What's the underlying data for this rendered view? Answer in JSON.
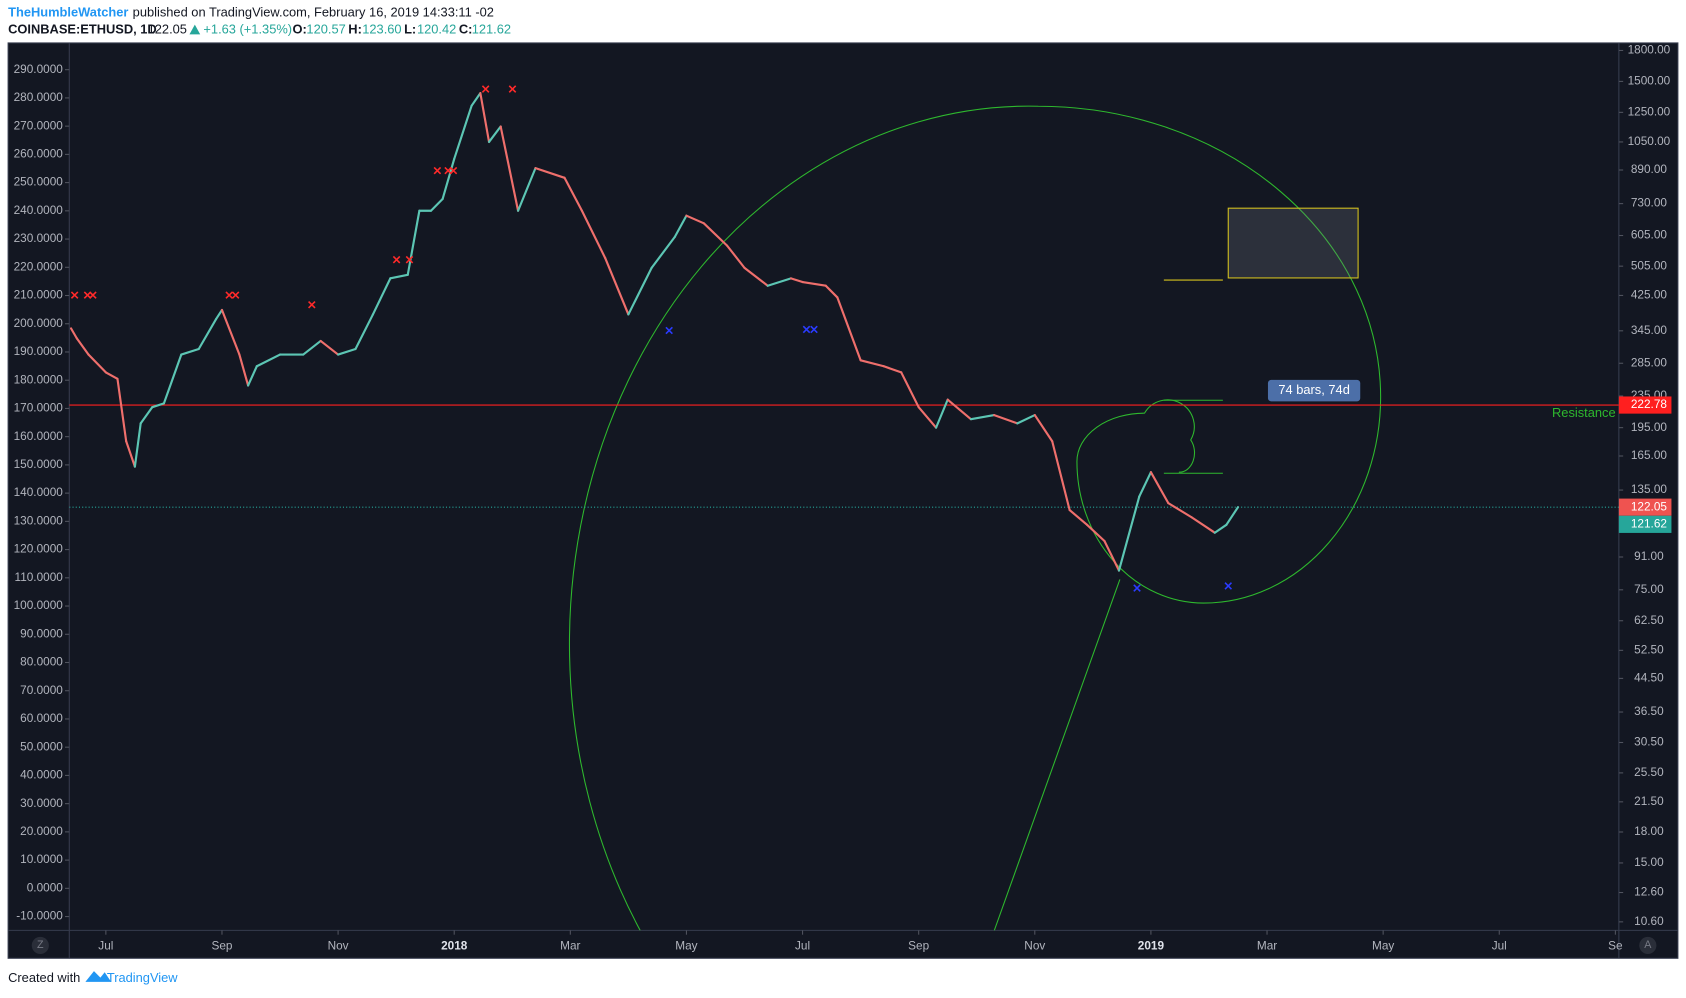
{
  "header": {
    "author": "TheHumbleWatcher",
    "published": "published on TradingView.com, February 16, 2019 14:33:11 -02",
    "symbol": "COINBASE:ETHUSD, 1D",
    "last": "122.05",
    "change": "+1.63 (+1.35%)",
    "o_label": "O:",
    "o": "120.57",
    "h_label": "H:",
    "h": "123.60",
    "l_label": "L:",
    "l": "120.42",
    "c_label": "C:",
    "c": "121.62"
  },
  "footer": {
    "created": "Created with",
    "brand": "TradingView"
  },
  "buttons": {
    "left": "Z",
    "right": "A"
  },
  "chart_data": {
    "type": "line",
    "grid": false,
    "y2log": true,
    "xlim": [
      -0.63,
      26.06
    ],
    "xticks": [
      {
        "value": 0,
        "label": "Jul"
      },
      {
        "value": 2,
        "label": "Sep"
      },
      {
        "value": 4,
        "label": "Nov"
      },
      {
        "value": 6,
        "label": "2018"
      },
      {
        "value": 8,
        "label": "Mar"
      },
      {
        "value": 10,
        "label": "May"
      },
      {
        "value": 12,
        "label": "Jul"
      },
      {
        "value": 14,
        "label": "Sep"
      },
      {
        "value": 16,
        "label": "Nov"
      },
      {
        "value": 18,
        "label": "2019"
      },
      {
        "value": 20,
        "label": "Mar"
      },
      {
        "value": 22,
        "label": "May"
      },
      {
        "value": 24,
        "label": "Jul"
      },
      {
        "value": 26,
        "label": "Se"
      }
    ],
    "ylim": [
      -14.9,
      299.1
    ],
    "yticks": [
      {
        "value": -10,
        "label": "-10.0000"
      },
      {
        "value": 0,
        "label": "0.0000"
      },
      {
        "value": 10,
        "label": "10.0000"
      },
      {
        "value": 20,
        "label": "20.0000"
      },
      {
        "value": 30,
        "label": "30.0000"
      },
      {
        "value": 40,
        "label": "40.0000"
      },
      {
        "value": 50,
        "label": "50.0000"
      },
      {
        "value": 60,
        "label": "60.0000"
      },
      {
        "value": 70,
        "label": "70.0000"
      },
      {
        "value": 80,
        "label": "80.0000"
      },
      {
        "value": 90,
        "label": "90.0000"
      },
      {
        "value": 100,
        "label": "100.0000"
      },
      {
        "value": 110,
        "label": "110.0000"
      },
      {
        "value": 120,
        "label": "120.0000"
      },
      {
        "value": 130,
        "label": "130.0000"
      },
      {
        "value": 140,
        "label": "140.0000"
      },
      {
        "value": 150,
        "label": "150.0000"
      },
      {
        "value": 160,
        "label": "160.0000"
      },
      {
        "value": 170,
        "label": "170.0000"
      },
      {
        "value": 180,
        "label": "180.0000"
      },
      {
        "value": 190,
        "label": "190.0000"
      },
      {
        "value": 200,
        "label": "200.0000"
      },
      {
        "value": 210,
        "label": "210.0000"
      },
      {
        "value": 220,
        "label": "220.0000"
      },
      {
        "value": 230,
        "label": "230.0000"
      },
      {
        "value": 240,
        "label": "240.0000"
      },
      {
        "value": 250,
        "label": "250.0000"
      },
      {
        "value": 260,
        "label": "260.0000"
      },
      {
        "value": 270,
        "label": "270.0000"
      },
      {
        "value": 280,
        "label": "280.0000"
      },
      {
        "value": 290,
        "label": "290.0000"
      }
    ],
    "y2lim": [
      10.08,
      1870
    ],
    "y2ticks": [
      {
        "value": 1800,
        "label": "1800.00"
      },
      {
        "value": 1500,
        "label": "1500.00"
      },
      {
        "value": 1250,
        "label": "1250.00"
      },
      {
        "value": 1050,
        "label": "1050.00"
      },
      {
        "value": 890,
        "label": "890.00"
      },
      {
        "value": 730,
        "label": "730.00"
      },
      {
        "value": 605,
        "label": "605.00"
      },
      {
        "value": 505,
        "label": "505.00"
      },
      {
        "value": 425,
        "label": "425.00"
      },
      {
        "value": 345,
        "label": "345.00"
      },
      {
        "value": 285,
        "label": "285.00"
      },
      {
        "value": 235,
        "label": "235.00"
      },
      {
        "value": 195,
        "label": "195.00"
      },
      {
        "value": 165,
        "label": "165.00"
      },
      {
        "value": 135,
        "label": "135.00"
      },
      {
        "value": 91,
        "label": "91.00"
      },
      {
        "value": 75,
        "label": "75.00"
      },
      {
        "value": 62.5,
        "label": "62.50"
      },
      {
        "value": 52.5,
        "label": "52.50"
      },
      {
        "value": 44.5,
        "label": "44.50"
      },
      {
        "value": 36.5,
        "label": "36.50"
      },
      {
        "value": 30.5,
        "label": "30.50"
      },
      {
        "value": 25.5,
        "label": "25.50"
      },
      {
        "value": 21.5,
        "label": "21.50"
      },
      {
        "value": 18,
        "label": "18.00"
      },
      {
        "value": 15,
        "label": "15.00"
      },
      {
        "value": 12.6,
        "label": "12.60"
      },
      {
        "value": 10.6,
        "label": "10.60"
      }
    ],
    "series": [
      {
        "axis": "y2",
        "up_color": "#5cc6b4",
        "down_color": "#ef6f6c",
        "x": [
          -0.6,
          -0.5,
          -0.3,
          0.0,
          0.2,
          0.35,
          0.5,
          0.6,
          0.8,
          1.0,
          1.3,
          1.6,
          1.9,
          2.0,
          2.3,
          2.45,
          2.6,
          3.0,
          3.4,
          3.7,
          4.0,
          4.3,
          4.6,
          4.9,
          5.2,
          5.4,
          5.6,
          5.8,
          6.0,
          6.3,
          6.45,
          6.6,
          6.8,
          7.1,
          7.4,
          7.9,
          8.2,
          8.6,
          9.0,
          9.4,
          9.8,
          10.0,
          10.3,
          10.7,
          11.0,
          11.4,
          11.8,
          12.0,
          12.4,
          12.6,
          13.0,
          13.4,
          13.7,
          14.0,
          14.3,
          14.5,
          14.9,
          15.3,
          15.7,
          16.0,
          16.3,
          16.6,
          16.9,
          17.2,
          17.45,
          17.8,
          18.0,
          18.3,
          18.7,
          19.1,
          19.3,
          19.5
        ],
        "values": [
          350,
          330,
          300,
          270,
          260,
          180,
          155,
          200,
          220,
          225,
          300,
          310,
          370,
          390,
          300,
          250,
          280,
          300,
          300,
          325,
          300,
          310,
          380,
          470,
          480,
          700,
          700,
          750,
          950,
          1300,
          1400,
          1050,
          1150,
          700,
          900,
          850,
          700,
          530,
          380,
          500,
          600,
          680,
          650,
          570,
          500,
          450,
          470,
          460,
          450,
          420,
          290,
          280,
          270,
          220,
          195,
          230,
          205,
          210,
          200,
          210,
          180,
          120,
          110,
          100,
          84,
          130,
          150,
          125,
          115,
          105,
          110,
          122.05
        ]
      }
    ],
    "resistance": {
      "label": "Resistance",
      "value": 222.78,
      "color": "#ff1f1f"
    },
    "measure_label": "74 bars, 74d",
    "price_badges": [
      {
        "value": 122.05,
        "color": "#ef5350"
      },
      {
        "value": 121.62,
        "color": "#26a69a"
      }
    ]
  }
}
